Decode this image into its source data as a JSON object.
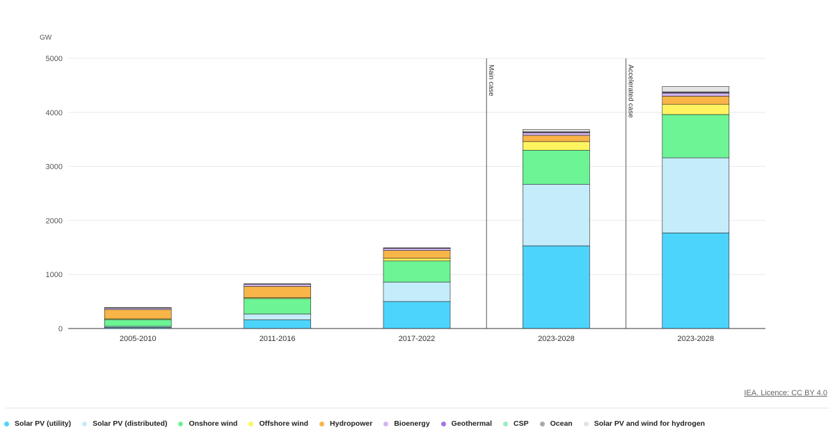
{
  "chart_data": {
    "type": "bar",
    "stacked": true,
    "ylabel": "GW",
    "ylim": [
      0,
      5000
    ],
    "yticks": [
      0,
      1000,
      2000,
      3000,
      4000,
      5000
    ],
    "grid": true,
    "legend_position": "bottom",
    "categories": [
      "2005-2010",
      "2011-2016",
      "2017-2022",
      "2023-2028",
      "2023-2028"
    ],
    "annotations": [
      {
        "label": "Main case",
        "before_category_index": 3
      },
      {
        "label": "Accelerated case",
        "before_category_index": 4
      }
    ],
    "series": [
      {
        "name": "Solar PV (utility)",
        "color": "#4dd4fc",
        "values": [
          20,
          160,
          500,
          1530,
          1770
        ]
      },
      {
        "name": "Solar PV (distributed)",
        "color": "#c4ecfa",
        "values": [
          20,
          110,
          360,
          1140,
          1390
        ]
      },
      {
        "name": "Onshore wind",
        "color": "#6df495",
        "values": [
          125,
          285,
          390,
          630,
          800
        ]
      },
      {
        "name": "Offshore wind",
        "color": "#fff460",
        "values": [
          15,
          15,
          50,
          160,
          190
        ]
      },
      {
        "name": "Hydropower",
        "color": "#f9b548",
        "values": [
          170,
          210,
          145,
          115,
          150
        ]
      },
      {
        "name": "Bioenergy",
        "color": "#d2b6f0",
        "values": [
          30,
          40,
          40,
          50,
          55
        ]
      },
      {
        "name": "Geothermal",
        "color": "#a672e8",
        "values": [
          5,
          5,
          5,
          10,
          15
        ]
      },
      {
        "name": "CSP",
        "color": "#9aeec0",
        "values": [
          2,
          3,
          3,
          5,
          10
        ]
      },
      {
        "name": "Ocean",
        "color": "#a7a9ac",
        "values": [
          0,
          0,
          0,
          0,
          0
        ]
      },
      {
        "name": "Solar PV and wind for hydrogen",
        "color": "#e3e3e3",
        "values": [
          0,
          0,
          0,
          40,
          100
        ]
      }
    ]
  },
  "source": {
    "licence": "IEA. Licence: CC BY 4.0"
  }
}
